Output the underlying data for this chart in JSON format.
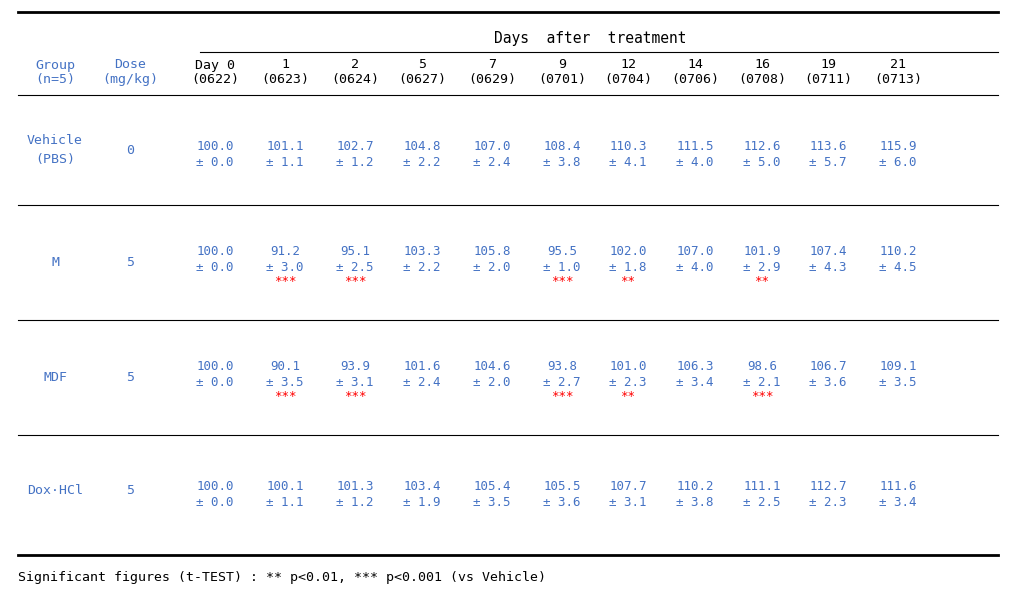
{
  "title": "Days  after  treatment",
  "col_headers_day": [
    "Day 0",
    "1",
    "2",
    "5",
    "7",
    "9",
    "12",
    "14",
    "16",
    "19",
    "21"
  ],
  "col_headers_date": [
    "(0622)",
    "(0623)",
    "(0624)",
    "(0627)",
    "(0629)",
    "(0701)",
    "(0704)",
    "(0706)",
    "(0708)",
    "(0711)",
    "(0713)"
  ],
  "groups": [
    {
      "name": "Vehicle\n(PBS)",
      "dose": "0",
      "values": [
        "100.0",
        "101.1",
        "102.7",
        "104.8",
        "107.0",
        "108.4",
        "110.3",
        "111.5",
        "112.6",
        "113.6",
        "115.9"
      ],
      "errors": [
        "± 0.0",
        "± 1.1",
        "± 1.2",
        "± 2.2",
        "± 2.4",
        "± 3.8",
        "± 4.1",
        "± 4.0",
        "± 5.0",
        "± 5.7",
        "± 6.0"
      ],
      "stars": [
        "",
        "",
        "",
        "",
        "",
        "",
        "",
        "",
        "",
        "",
        ""
      ]
    },
    {
      "name": "M",
      "dose": "5",
      "values": [
        "100.0",
        "91.2",
        "95.1",
        "103.3",
        "105.8",
        "95.5",
        "102.0",
        "107.0",
        "101.9",
        "107.4",
        "110.2"
      ],
      "errors": [
        "± 0.0",
        "± 3.0",
        "± 2.5",
        "± 2.2",
        "± 2.0",
        "± 1.0",
        "± 1.8",
        "± 4.0",
        "± 2.9",
        "± 4.3",
        "± 4.5"
      ],
      "stars": [
        "",
        "***",
        "***",
        "",
        "",
        "***",
        "**",
        "",
        "**",
        "",
        ""
      ]
    },
    {
      "name": "MDF",
      "dose": "5",
      "values": [
        "100.0",
        "90.1",
        "93.9",
        "101.6",
        "104.6",
        "93.8",
        "101.0",
        "106.3",
        "98.6",
        "106.7",
        "109.1"
      ],
      "errors": [
        "± 0.0",
        "± 3.5",
        "± 3.1",
        "± 2.4",
        "± 2.0",
        "± 2.7",
        "± 2.3",
        "± 3.4",
        "± 2.1",
        "± 3.6",
        "± 3.5"
      ],
      "stars": [
        "",
        "***",
        "***",
        "",
        "",
        "***",
        "**",
        "",
        "***",
        "",
        ""
      ]
    },
    {
      "name": "Dox·HCl",
      "dose": "5",
      "values": [
        "100.0",
        "100.1",
        "101.3",
        "103.4",
        "105.4",
        "105.5",
        "107.7",
        "110.2",
        "111.1",
        "112.7",
        "111.6"
      ],
      "errors": [
        "± 0.0",
        "± 1.1",
        "± 1.2",
        "± 1.9",
        "± 3.5",
        "± 3.6",
        "± 3.1",
        "± 3.8",
        "± 2.5",
        "± 2.3",
        "± 3.4"
      ],
      "stars": [
        "",
        "",
        "",
        "",
        "",
        "",
        "",
        "",
        "",
        "",
        ""
      ]
    }
  ],
  "footnote": "Significant figures (t-TEST) : ** p<0.01, *** p<0.001 (vs Vehicle)",
  "text_color_blue": "#4472C4",
  "text_color_black": "#000000",
  "star_color": "#FF0000",
  "bg_color": "#FFFFFF",
  "font_size": 9.0,
  "font_size_header": 9.5
}
